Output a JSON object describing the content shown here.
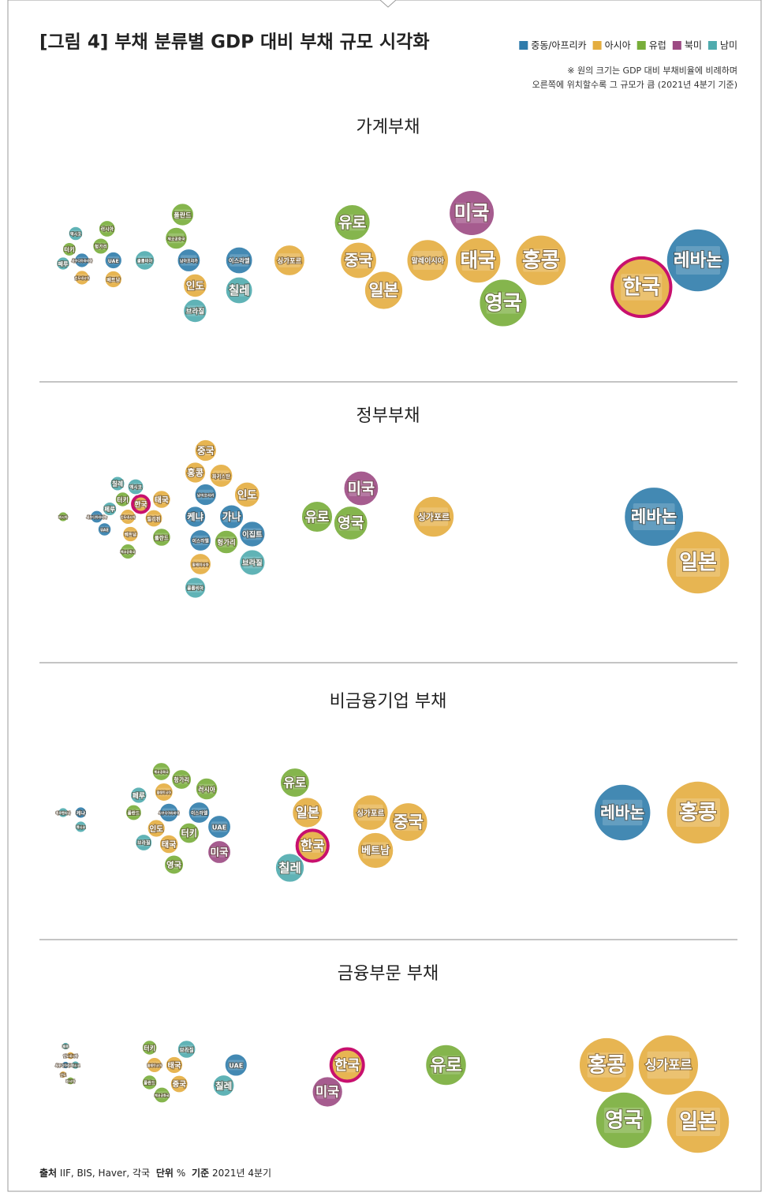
{
  "title": "[그림 4] 부채 분류별 GDP 대비 부채 규모 시각화",
  "legend": [
    {
      "name": "중동/아프리카",
      "color": "#2f7cab"
    },
    {
      "name": "아시아",
      "color": "#e4ad3f"
    },
    {
      "name": "유럽",
      "color": "#78ad3a"
    },
    {
      "name": "북미",
      "color": "#9c4a83"
    },
    {
      "name": "남미",
      "color": "#4fabae"
    }
  ],
  "note": [
    "※ 원의 크기는 GDP 대비 부채비율에 비례하며",
    "오른쪽에 위치할수록 그 규모가 큼 (2021년 4분기 기준)"
  ],
  "highlight_label": "한국",
  "highlight_color": "#c8106e",
  "source": {
    "source_label": "출처",
    "source_text": "IIF, BIS, Haver, 각국",
    "unit_label": "단위",
    "unit_text": "%",
    "basis_label": "기준",
    "basis_text": "2021년 4분기"
  },
  "chart_data": [
    {
      "type": "bubble",
      "title": "가계부채",
      "series": [
        {
          "labels": [
            "사우디아라비아",
            "UAE",
            "남아프리카",
            "이스라엘",
            "레바논"
          ],
          "values": [
            17,
            22,
            34,
            42,
            115
          ]
        },
        {
          "labels": [
            "인도네시아",
            "베트남",
            "인도",
            "싱가포르",
            "중국",
            "일본",
            "말레이시아",
            "태국",
            "홍콩",
            "한국"
          ],
          "values": [
            17,
            22,
            35,
            50,
            61,
            65,
            72,
            80,
            90,
            106
          ]
        },
        {
          "labels": [
            "터키",
            "헝가리",
            "러시아",
            "체코공화국",
            "폴란드",
            "유로",
            "영국"
          ],
          "values": [
            15,
            20,
            21,
            32,
            33,
            60,
            84
          ]
        },
        {
          "labels": [
            "미국"
          ],
          "values": [
            79
          ]
        },
        {
          "labels": [
            "페루",
            "멕시코",
            "콜롬비아",
            "브라질",
            "칠레"
          ],
          "values": [
            14,
            16,
            27,
            35,
            42
          ]
        }
      ]
    },
    {
      "type": "bubble",
      "title": "정부부채",
      "series": [
        {
          "labels": [
            "사우디아라비아",
            "UAE",
            "케냐",
            "이스라엘",
            "남아프리카",
            "가나",
            "이집트",
            "레바논"
          ],
          "values": [
            30,
            33,
            68,
            70,
            72,
            82,
            90,
            245
          ]
        },
        {
          "labels": [
            "인도네시아",
            "베트남",
            "한국",
            "필리핀",
            "태국",
            "홍콩",
            "말레이시아",
            "중국",
            "파키스탄",
            "인도",
            "싱가포르",
            "일본"
          ],
          "values": [
            42,
            43,
            47,
            52,
            55,
            68,
            70,
            72,
            78,
            88,
            160,
            262
          ]
        },
        {
          "labels": [
            "러시아",
            "터키",
            "체코공화국",
            "폴란드",
            "헝가리",
            "유로",
            "영국"
          ],
          "values": [
            17,
            40,
            42,
            55,
            80,
            115,
            128
          ]
        },
        {
          "labels": [
            "미국"
          ],
          "values": [
            132
          ]
        },
        {
          "labels": [
            "페루",
            "칠레",
            "멕시코",
            "콜롬비아",
            "브라질"
          ],
          "values": [
            35,
            38,
            45,
            68,
            90
          ]
        }
      ]
    },
    {
      "type": "bubble",
      "title": "비금융기업 부채",
      "series": [
        {
          "labels": [
            "케냐",
            "사우디아라비아",
            "이스라엘",
            "UAE",
            "레바논"
          ],
          "values": [
            25,
            60,
            72,
            80,
            240
          ]
        },
        {
          "labels": [
            "인도",
            "말레이시아",
            "태국",
            "일본",
            "한국",
            "싱가포르",
            "베트남",
            "중국",
            "홍콩"
          ],
          "values": [
            55,
            58,
            60,
            115,
            117,
            140,
            142,
            155,
            270
          ]
        },
        {
          "labels": [
            "폴란드",
            "체코공화국",
            "영국",
            "헝가리",
            "터키",
            "러시아",
            "유로"
          ],
          "values": [
            46,
            57,
            62,
            65,
            68,
            75,
            110
          ]
        },
        {
          "labels": [
            "미국"
          ],
          "values": [
            80
          ]
        },
        {
          "labels": [
            "아르헨티나",
            "멕시코",
            "페루",
            "브라질",
            "칠레"
          ],
          "values": [
            18,
            25,
            48,
            50,
            108
          ]
        }
      ]
    },
    {
      "type": "bubble",
      "title": "금융부문 부채",
      "series": [
        {
          "labels": [
            "사우디아라비아",
            "UAE"
          ],
          "values": [
            6,
            75
          ]
        },
        {
          "labels": [
            "인도",
            "인도네시아",
            "말레이시아",
            "태국",
            "중국",
            "한국",
            "홍콩",
            "싱가포르",
            "일본"
          ],
          "values": [
            5,
            8,
            42,
            50,
            52,
            120,
            225,
            250,
            262
          ]
        },
        {
          "labels": [
            "러시아",
            "폴란드",
            "터키",
            "체코공화국",
            "유로",
            "영국"
          ],
          "values": [
            8,
            40,
            40,
            45,
            160,
            232
          ]
        },
        {
          "labels": [
            "미국"
          ],
          "values": [
            112
          ]
        },
        {
          "labels": [
            "페루",
            "멕시코",
            "브라질",
            "칠레"
          ],
          "values": [
            6,
            10,
            55,
            70
          ]
        }
      ]
    }
  ]
}
